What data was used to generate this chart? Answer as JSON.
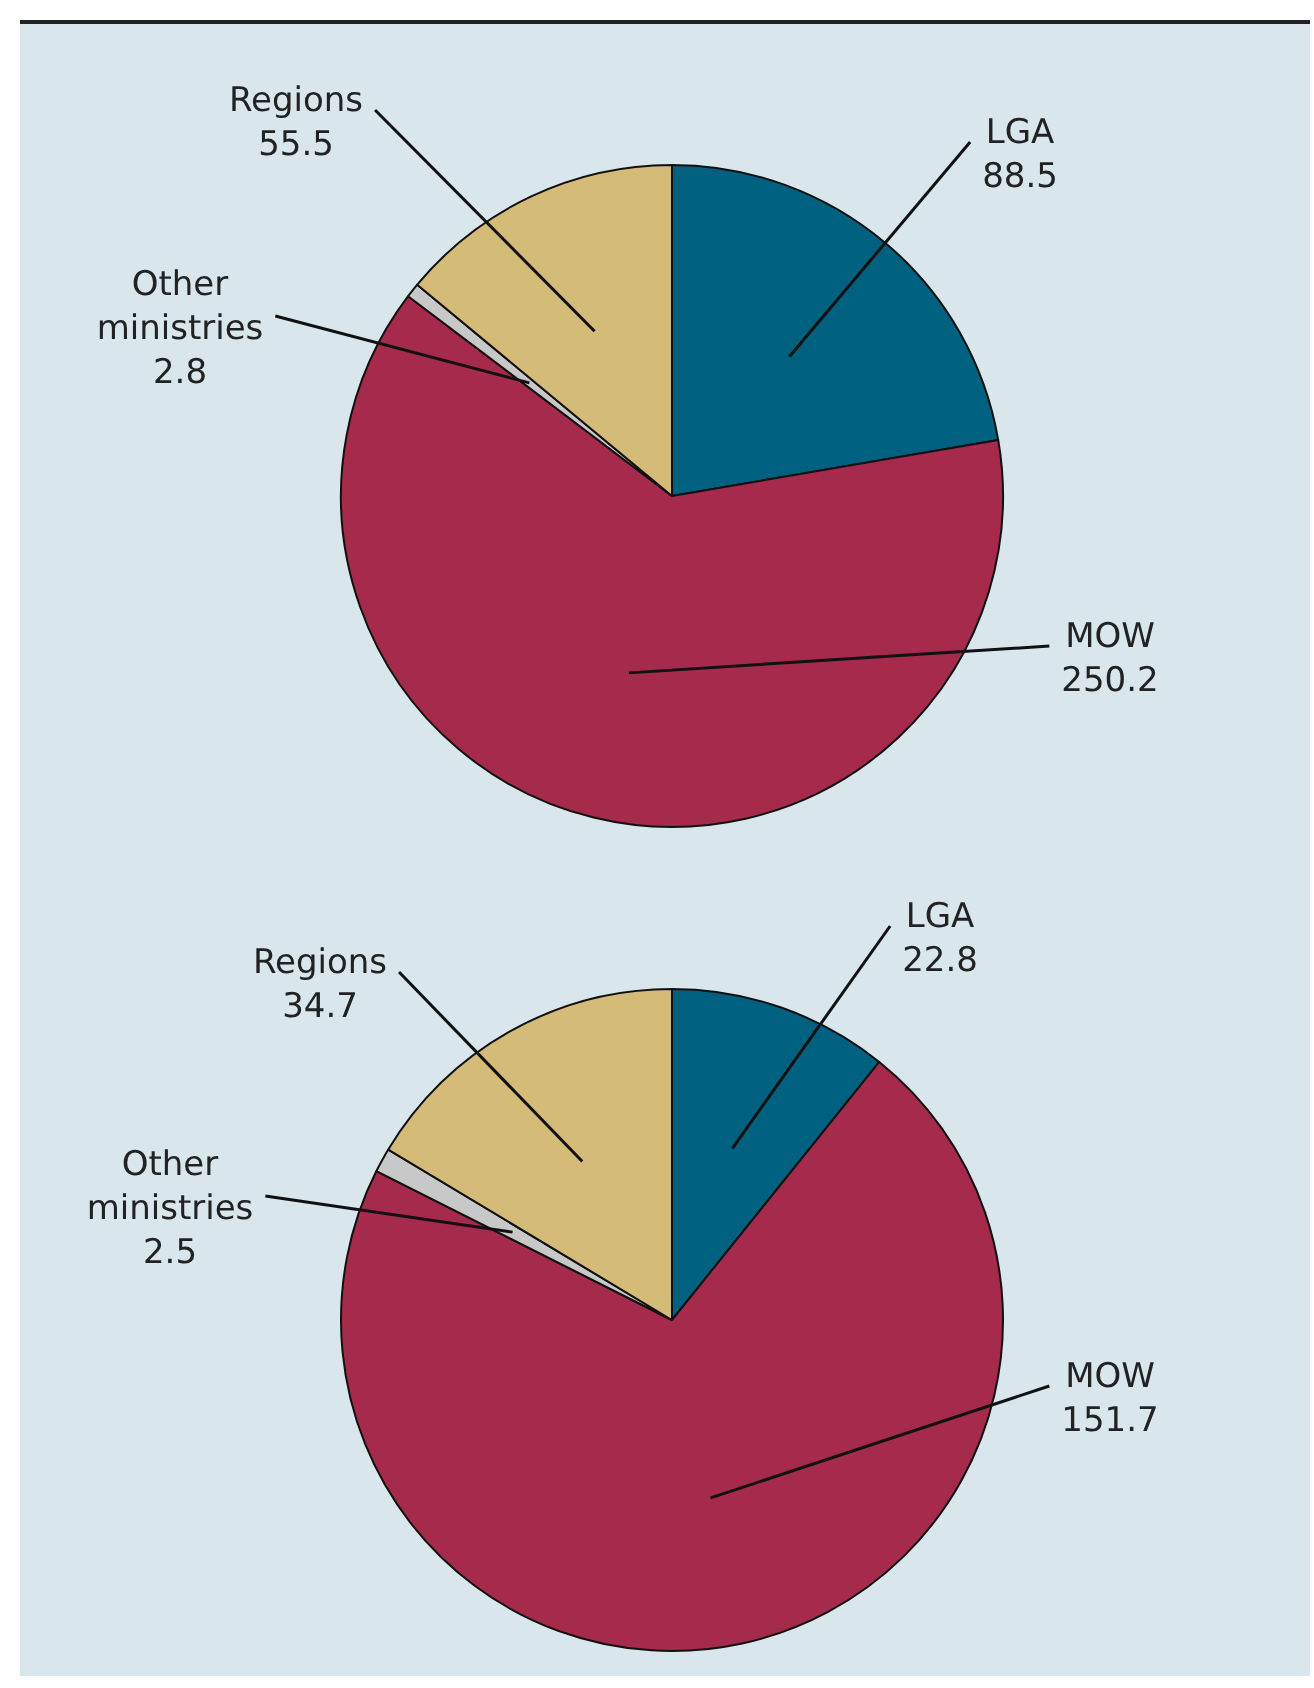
{
  "chart_data": [
    {
      "type": "pie",
      "categories": [
        "LGA",
        "MOW",
        "Other ministries",
        "Regions"
      ],
      "values": [
        88.5,
        250.2,
        2.8,
        55.5
      ],
      "colors": [
        "#00607f",
        "#a52a4b",
        "#c8c8c8",
        "#d4bc78"
      ],
      "data_labels": true,
      "legend": false
    },
    {
      "type": "pie",
      "categories": [
        "LGA",
        "MOW",
        "Other ministries",
        "Regions"
      ],
      "values": [
        22.8,
        151.7,
        2.5,
        34.7
      ],
      "colors": [
        "#00607f",
        "#a52a4b",
        "#c8c8c8",
        "#d4bc78"
      ],
      "data_labels": true,
      "legend": false
    }
  ]
}
